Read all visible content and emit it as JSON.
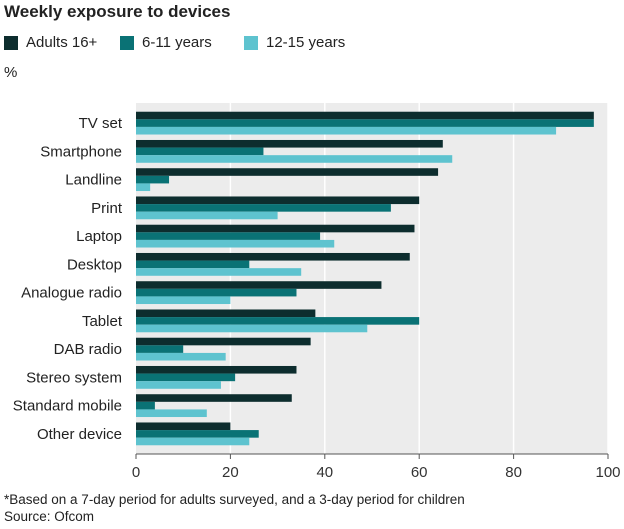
{
  "chart_data": {
    "type": "bar",
    "orientation": "horizontal",
    "title": "Weekly exposure to devices",
    "unit_label": "%",
    "categories": [
      "TV set",
      "Smartphone",
      "Landline",
      "Print",
      "Laptop",
      "Desktop",
      "Analogue radio",
      "Tablet",
      "DAB radio",
      "Stereo system",
      "Standard mobile",
      "Other device"
    ],
    "series": [
      {
        "name": "Adults 16+",
        "color": "#0d2d2e",
        "values": [
          97,
          65,
          64,
          60,
          59,
          58,
          52,
          38,
          37,
          34,
          33,
          20
        ]
      },
      {
        "name": "6-11 years",
        "color": "#0a7275",
        "values": [
          97,
          27,
          7,
          54,
          39,
          24,
          34,
          60,
          10,
          21,
          4,
          26
        ]
      },
      {
        "name": "12-15 years",
        "color": "#5ec3cf",
        "values": [
          89,
          67,
          3,
          30,
          42,
          35,
          20,
          49,
          19,
          18,
          15,
          24
        ]
      }
    ],
    "xlim": [
      0,
      100
    ],
    "xticks": [
      0,
      20,
      40,
      60,
      80,
      100
    ],
    "grid": true,
    "legend_position": "top-left"
  },
  "footnote": "*Based on a 7-day period for adults surveyed, and a 3-day period for children",
  "source": "Source: Ofcom"
}
